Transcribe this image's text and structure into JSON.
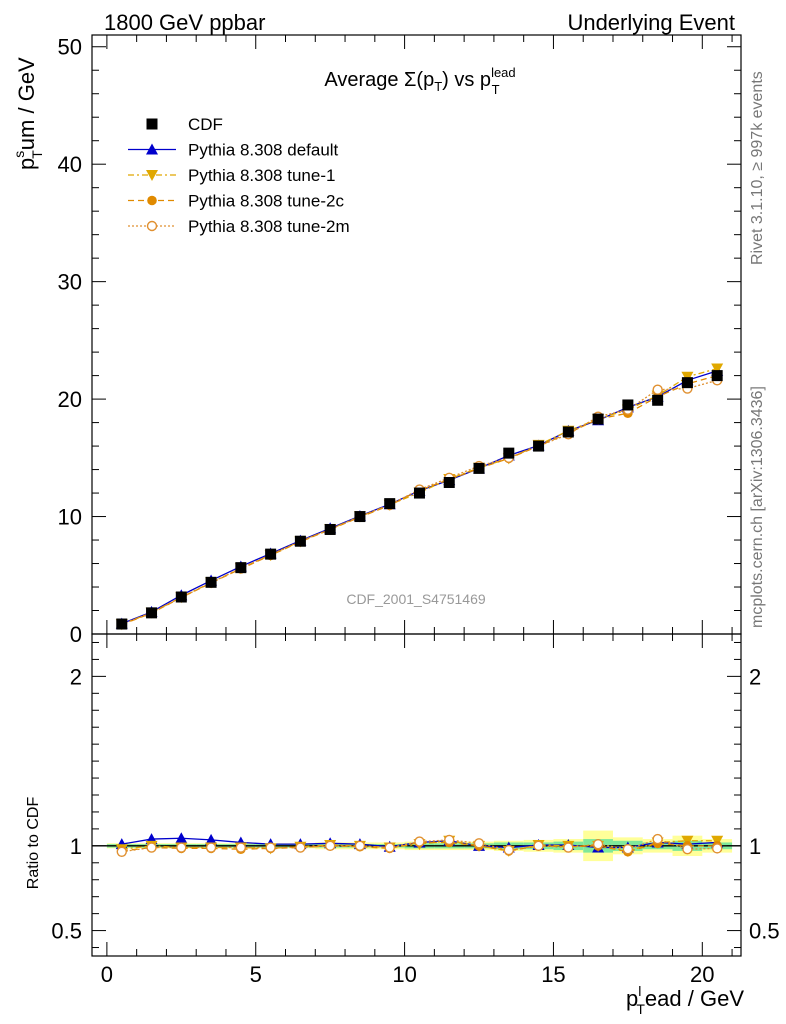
{
  "header": {
    "left": "1800 GeV ppbar",
    "right": "Underlying Event"
  },
  "side_text": {
    "rivet": "Rivet 3.1.10, ≥ 997k events",
    "mcplots": "mcplots.cern.ch [arXiv:1306.3436]"
  },
  "watermark": "CDF_2001_S4751469",
  "colors": {
    "cdf": "#000000",
    "default": "#0000cc",
    "tune1": "#e0a800",
    "tune2c": "#e08a00",
    "tune2m": "#e09030",
    "band_inner": "#7fe89a",
    "band_outer": "#ffff99"
  },
  "chart_data": [
    {
      "type": "line",
      "title": "Average Σ(pT) vs pTlead",
      "title_parts": {
        "pre": "Average Σ(p",
        "sub1": "T",
        "mid": ") vs p",
        "sup2": "lead",
        "sub2": "T"
      },
      "ylabel": "pTsum / GeV",
      "ylabel_parts": {
        "p": "p",
        "sup": "s",
        "sub": "T",
        "rest": "um / GeV"
      },
      "xlim": [
        -0.5,
        21.3
      ],
      "ylim": [
        0,
        51
      ],
      "yticks": [
        0,
        10,
        20,
        30,
        40,
        50
      ],
      "x": [
        0.5,
        1.5,
        2.5,
        3.5,
        4.5,
        5.5,
        6.5,
        7.5,
        8.5,
        9.5,
        10.5,
        11.5,
        12.5,
        13.5,
        14.5,
        15.5,
        16.5,
        17.5,
        18.5,
        19.5,
        20.5
      ],
      "legend": {
        "position": "top-left",
        "entries": [
          "CDF",
          "Pythia 8.308 default",
          "Pythia 8.308 tune-1",
          "Pythia 8.308 tune-2c",
          "Pythia 8.308 tune-2m"
        ]
      },
      "series": [
        {
          "name": "CDF",
          "marker": "square",
          "values": [
            0.85,
            1.8,
            3.15,
            4.4,
            5.65,
            6.8,
            7.9,
            8.9,
            10.0,
            11.1,
            12.0,
            12.9,
            14.1,
            15.4,
            16.0,
            17.2,
            18.3,
            19.5,
            19.9,
            21.4,
            22.0
          ]
        },
        {
          "name": "Pythia 8.308 default",
          "marker": "triangle-up",
          "values": [
            0.88,
            1.88,
            3.3,
            4.55,
            5.75,
            6.85,
            7.95,
            9.0,
            10.05,
            11.05,
            12.2,
            13.1,
            14.1,
            15.2,
            16.05,
            17.3,
            18.2,
            19.3,
            20.2,
            21.6,
            22.4
          ]
        },
        {
          "name": "Pythia 8.308 tune-1",
          "marker": "triangle-down",
          "values": [
            0.83,
            1.82,
            3.13,
            4.38,
            5.6,
            6.72,
            7.88,
            8.93,
            10.0,
            11.0,
            12.05,
            13.2,
            14.15,
            14.95,
            16.1,
            17.3,
            18.3,
            19.1,
            20.3,
            21.9,
            22.6
          ]
        },
        {
          "name": "Pythia 8.308 tune-2c",
          "marker": "circle-filled",
          "values": [
            0.8,
            1.78,
            3.1,
            4.35,
            5.55,
            6.7,
            7.85,
            8.9,
            9.95,
            10.95,
            12.25,
            13.15,
            14.1,
            14.95,
            16.0,
            17.1,
            18.3,
            18.8,
            20.2,
            21.3,
            22.0
          ]
        },
        {
          "name": "Pythia 8.308 tune-2m",
          "marker": "circle-open",
          "values": [
            0.82,
            1.8,
            3.12,
            4.36,
            5.6,
            6.75,
            7.9,
            8.92,
            10.0,
            11.0,
            12.3,
            13.3,
            14.3,
            15.0,
            16.0,
            17.0,
            18.5,
            19.1,
            20.8,
            20.9,
            21.6
          ]
        }
      ]
    },
    {
      "type": "line",
      "ylabel": "Ratio to CDF",
      "xlabel": "pTlead / GeV",
      "xlabel_parts": {
        "p": "p",
        "sup": "l",
        "sub": "T",
        "rest": "ead / GeV"
      },
      "xlim": [
        -0.5,
        21.3
      ],
      "ylim": [
        0.35,
        2.25
      ],
      "yticks": [
        0.5,
        1,
        2
      ],
      "xticks": [
        0,
        5,
        10,
        15,
        20
      ],
      "x": [
        0.5,
        1.5,
        2.5,
        3.5,
        4.5,
        5.5,
        6.5,
        7.5,
        8.5,
        9.5,
        10.5,
        11.5,
        12.5,
        13.5,
        14.5,
        15.5,
        16.5,
        17.5,
        18.5,
        19.5,
        20.5
      ],
      "band_inner": [
        0.01,
        0.01,
        0.01,
        0.01,
        0.01,
        0.01,
        0.01,
        0.01,
        0.01,
        0.01,
        0.015,
        0.015,
        0.015,
        0.02,
        0.02,
        0.025,
        0.04,
        0.03,
        0.02,
        0.03,
        0.02
      ],
      "band_outer": [
        0.015,
        0.015,
        0.015,
        0.015,
        0.015,
        0.015,
        0.015,
        0.02,
        0.02,
        0.02,
        0.025,
        0.025,
        0.025,
        0.03,
        0.035,
        0.04,
        0.09,
        0.05,
        0.04,
        0.06,
        0.04
      ],
      "series": [
        {
          "name": "Pythia 8.308 default",
          "values": [
            1.01,
            1.04,
            1.045,
            1.035,
            1.02,
            1.01,
            1.01,
            1.015,
            1.01,
            0.995,
            1.02,
            1.03,
            1.0,
            0.99,
            1.005,
            1.005,
            0.99,
            0.99,
            1.02,
            1.01,
            1.02
          ]
        },
        {
          "name": "Pythia 8.308 tune-1",
          "values": [
            0.98,
            1.0,
            0.99,
            0.99,
            0.99,
            0.985,
            0.995,
            1.005,
            1.0,
            0.99,
            1.01,
            1.03,
            1.0,
            0.97,
            1.005,
            1.0,
            1.0,
            0.97,
            1.02,
            1.03,
            1.03
          ]
        },
        {
          "name": "Pythia 8.308 tune-2c",
          "values": [
            0.97,
            0.99,
            0.985,
            0.985,
            0.98,
            0.985,
            0.99,
            1.0,
            0.995,
            0.985,
            1.02,
            1.02,
            1.0,
            0.97,
            1.0,
            0.995,
            1.0,
            0.965,
            1.015,
            1.0,
            1.0
          ]
        },
        {
          "name": "Pythia 8.308 tune-2m",
          "values": [
            0.965,
            0.99,
            0.99,
            0.99,
            0.99,
            0.99,
            0.99,
            1.0,
            1.0,
            0.99,
            1.025,
            1.035,
            1.015,
            0.975,
            1.0,
            0.99,
            1.01,
            0.98,
            1.04,
            0.98,
            0.985
          ]
        }
      ]
    }
  ]
}
